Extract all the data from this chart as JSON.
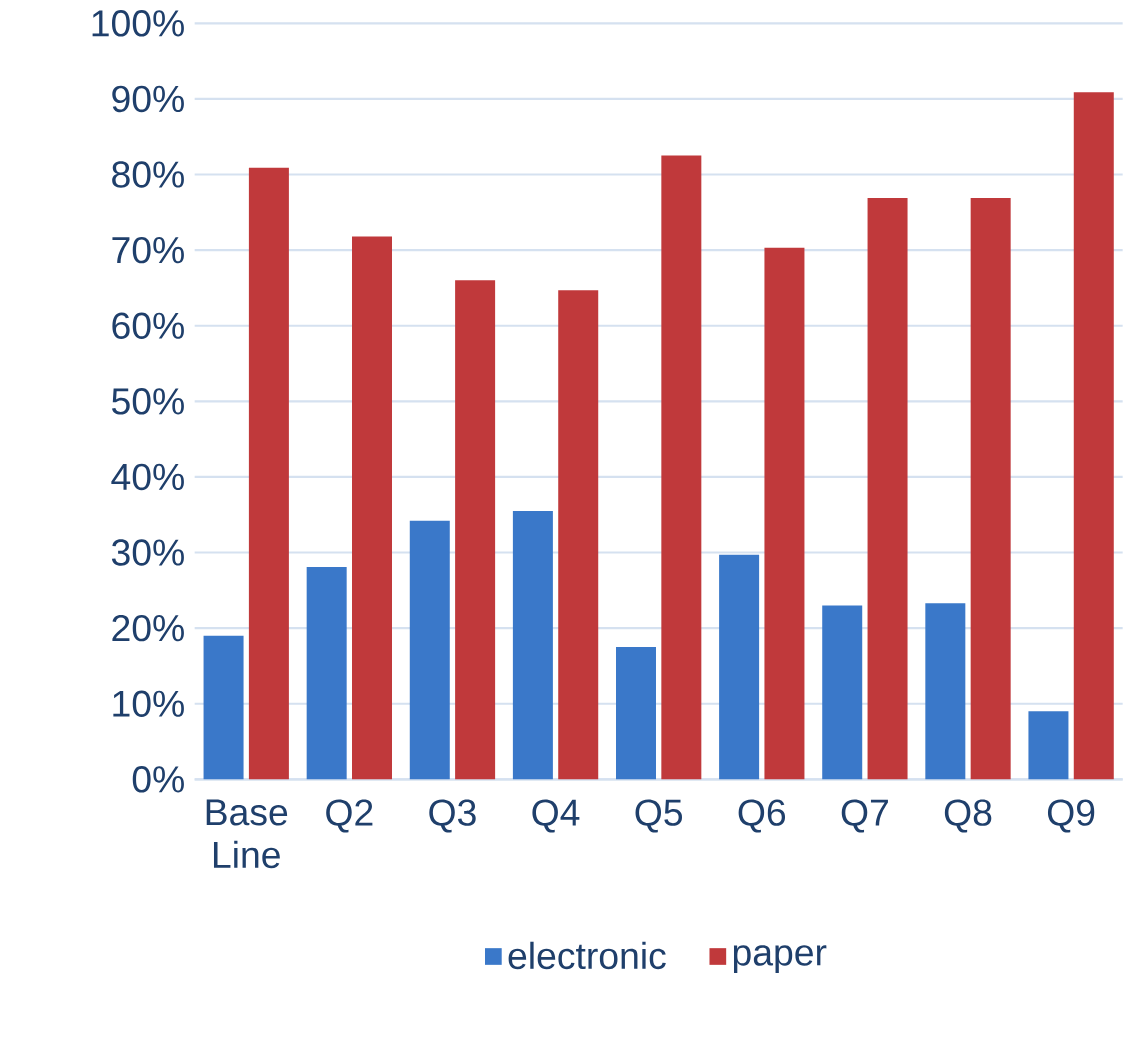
{
  "chart_data": {
    "type": "bar",
    "categories": [
      "Base Line",
      "Q2",
      "Q3",
      "Q4",
      "Q5",
      "Q6",
      "Q7",
      "Q8",
      "Q9"
    ],
    "series": [
      {
        "name": "electronic",
        "color": "#3a78c9",
        "values": [
          19.0,
          28.1,
          34.2,
          35.5,
          17.5,
          29.7,
          23.0,
          23.3,
          9.0
        ]
      },
      {
        "name": "paper",
        "color": "#c0393b",
        "values": [
          80.9,
          71.8,
          66.0,
          64.7,
          82.5,
          70.3,
          76.9,
          76.9,
          90.9
        ]
      }
    ],
    "ylim": [
      0,
      100
    ],
    "yticks": [
      {
        "value": 0,
        "label": "0%"
      },
      {
        "value": 10,
        "label": "10%"
      },
      {
        "value": 20,
        "label": "20%"
      },
      {
        "value": 30,
        "label": "30%"
      },
      {
        "value": 40,
        "label": "40%"
      },
      {
        "value": 50,
        "label": "50%"
      },
      {
        "value": 60,
        "label": "60%"
      },
      {
        "value": 70,
        "label": "70%"
      },
      {
        "value": 80,
        "label": "80%"
      },
      {
        "value": 90,
        "label": "90%"
      },
      {
        "value": 100,
        "label": "100%"
      }
    ],
    "grid": "y",
    "legend": "bottom"
  }
}
